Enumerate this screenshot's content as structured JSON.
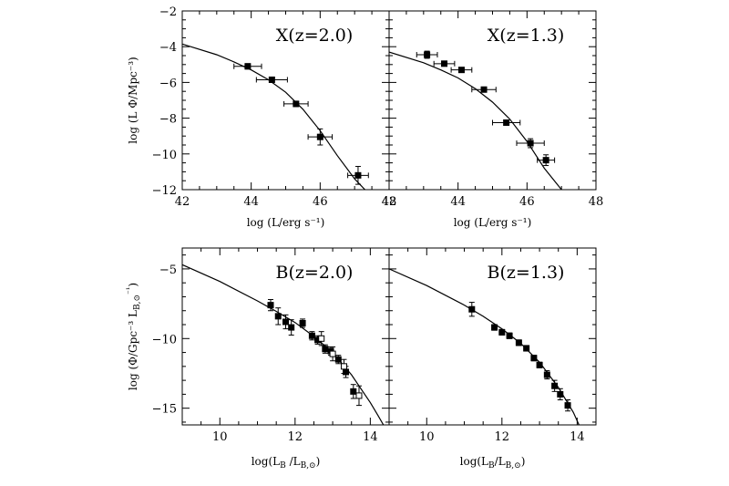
{
  "chart_data": [
    {
      "type": "scatter",
      "id": "xz20",
      "title": "X(z=2.0)",
      "xlabel": "log (L/erg s⁻¹)",
      "ylabel": "log (L Φ/Mpc⁻³)",
      "xlim": [
        42,
        48
      ],
      "ylim": [
        -12,
        -2
      ],
      "xticks": [
        "42",
        "44",
        "46",
        "48"
      ],
      "yticks": [
        "-12",
        "-10",
        "-8",
        "-6",
        "-4",
        "-2"
      ],
      "series": [
        {
          "marker": "filled-square",
          "points": [
            {
              "x": 43.9,
              "y": -5.1,
              "xerr": 0.4,
              "yerr": 0.15
            },
            {
              "x": 44.6,
              "y": -5.85,
              "xerr": 0.45,
              "yerr": 0.15
            },
            {
              "x": 45.3,
              "y": -7.2,
              "xerr": 0.35,
              "yerr": 0.15
            },
            {
              "x": 46.0,
              "y": -9.05,
              "xerr": 0.35,
              "yerr": 0.45
            },
            {
              "x": 47.1,
              "y": -11.2,
              "xerr": 0.3,
              "yerr": 0.5
            }
          ]
        }
      ],
      "model": [
        [
          42,
          -3.85
        ],
        [
          43,
          -4.45
        ],
        [
          43.5,
          -4.85
        ],
        [
          44,
          -5.3
        ],
        [
          44.5,
          -5.85
        ],
        [
          45,
          -6.55
        ],
        [
          45.5,
          -7.5
        ],
        [
          46,
          -8.7
        ],
        [
          46.5,
          -10.1
        ],
        [
          47,
          -11.4
        ],
        [
          47.3,
          -12.0
        ]
      ]
    },
    {
      "type": "scatter",
      "id": "xz13",
      "title": "X(z=1.3)",
      "xlabel": "log (L/erg s⁻¹)",
      "ylabel": "",
      "xlim": [
        42,
        48
      ],
      "ylim": [
        -12,
        -2
      ],
      "xticks": [
        "42",
        "44",
        "46",
        "48"
      ],
      "yticks": [],
      "series": [
        {
          "marker": "filled-square",
          "points": [
            {
              "x": 43.1,
              "y": -4.45,
              "xerr": 0.3,
              "yerr": 0.2
            },
            {
              "x": 43.6,
              "y": -4.95,
              "xerr": 0.3,
              "yerr": 0.12
            },
            {
              "x": 44.1,
              "y": -5.3,
              "xerr": 0.3,
              "yerr": 0.12
            },
            {
              "x": 44.75,
              "y": -6.4,
              "xerr": 0.35,
              "yerr": 0.12
            },
            {
              "x": 45.4,
              "y": -8.25,
              "xerr": 0.4,
              "yerr": 0.15
            },
            {
              "x": 46.1,
              "y": -9.4,
              "xerr": 0.4,
              "yerr": 0.25
            },
            {
              "x": 46.55,
              "y": -10.35,
              "xerr": 0.25,
              "yerr": 0.3
            }
          ]
        }
      ],
      "model": [
        [
          42,
          -4.3
        ],
        [
          43,
          -4.9
        ],
        [
          43.5,
          -5.3
        ],
        [
          44,
          -5.75
        ],
        [
          44.5,
          -6.35
        ],
        [
          45,
          -7.1
        ],
        [
          45.5,
          -8.05
        ],
        [
          46,
          -9.3
        ],
        [
          46.5,
          -10.8
        ],
        [
          47,
          -12.0
        ]
      ]
    },
    {
      "type": "scatter",
      "id": "bz20",
      "title": "B(z=2.0)",
      "xlabel": "log(L_B /L_B,⊙)",
      "ylabel": "log (Φ/Gpc⁻³ L_B,⊙⁻¹)",
      "xlim": [
        9,
        14.5
      ],
      "ylim": [
        -16.2,
        -3.5
      ],
      "xticks": [
        "10",
        "12",
        "14"
      ],
      "yticks": [
        "-5",
        "-10",
        "-15"
      ],
      "series": [
        {
          "marker": "filled-square",
          "points": [
            {
              "x": 11.35,
              "y": -7.6,
              "yerr": 0.4
            },
            {
              "x": 11.55,
              "y": -8.4,
              "yerr": 0.6
            },
            {
              "x": 11.75,
              "y": -8.8,
              "yerr": 0.5
            },
            {
              "x": 11.9,
              "y": -9.2,
              "yerr": 0.55
            },
            {
              "x": 12.2,
              "y": -8.9,
              "yerr": 0.3
            },
            {
              "x": 12.45,
              "y": -9.8,
              "yerr": 0.3
            },
            {
              "x": 12.6,
              "y": -10.1,
              "yerr": 0.3
            },
            {
              "x": 12.8,
              "y": -10.75,
              "yerr": 0.3
            },
            {
              "x": 12.95,
              "y": -10.9,
              "yerr": 0.3
            },
            {
              "x": 13.15,
              "y": -11.5,
              "yerr": 0.3
            },
            {
              "x": 13.35,
              "y": -12.4,
              "yerr": 0.4
            },
            {
              "x": 13.55,
              "y": -13.8,
              "yerr": 0.5
            }
          ]
        },
        {
          "marker": "open-square",
          "points": [
            {
              "x": 12.7,
              "y": -10.0,
              "yerr": 0.5
            },
            {
              "x": 13.0,
              "y": -11.1,
              "yerr": 0.5
            },
            {
              "x": 13.3,
              "y": -12.0,
              "yerr": 0.5
            },
            {
              "x": 13.7,
              "y": -14.1,
              "yerr": 0.7
            }
          ]
        }
      ],
      "model": [
        [
          9,
          -4.7
        ],
        [
          10,
          -5.9
        ],
        [
          11,
          -7.3
        ],
        [
          11.5,
          -8.05
        ],
        [
          12,
          -8.85
        ],
        [
          12.5,
          -9.85
        ],
        [
          13,
          -11.0
        ],
        [
          13.5,
          -12.6
        ],
        [
          14,
          -14.6
        ],
        [
          14.2,
          -15.5
        ],
        [
          14.35,
          -16.2
        ]
      ]
    },
    {
      "type": "scatter",
      "id": "bz13",
      "title": "B(z=1.3)",
      "xlabel": "log(L_B/L_B,⊙)",
      "ylabel": "",
      "xlim": [
        9,
        14.5
      ],
      "ylim": [
        -16.2,
        -3.5
      ],
      "xticks": [
        "10",
        "12",
        "14"
      ],
      "yticks": [],
      "series": [
        {
          "marker": "filled-square",
          "points": [
            {
              "x": 11.2,
              "y": -7.9,
              "yerr": 0.5
            },
            {
              "x": 11.8,
              "y": -9.2,
              "yerr": 0.2
            },
            {
              "x": 12.0,
              "y": -9.55,
              "yerr": 0.2
            },
            {
              "x": 12.2,
              "y": -9.8,
              "yerr": 0.2
            },
            {
              "x": 12.45,
              "y": -10.3,
              "yerr": 0.2
            },
            {
              "x": 12.65,
              "y": -10.7,
              "yerr": 0.2
            },
            {
              "x": 12.85,
              "y": -11.4,
              "yerr": 0.2
            },
            {
              "x": 13.0,
              "y": -11.9,
              "yerr": 0.2
            },
            {
              "x": 13.2,
              "y": -12.6,
              "yerr": 0.3
            },
            {
              "x": 13.4,
              "y": -13.4,
              "yerr": 0.4
            },
            {
              "x": 13.55,
              "y": -14.0,
              "yerr": 0.4
            },
            {
              "x": 13.75,
              "y": -14.8,
              "yerr": 0.4
            }
          ]
        }
      ],
      "model": [
        [
          9,
          -5.0
        ],
        [
          10,
          -6.2
        ],
        [
          11,
          -7.6
        ],
        [
          11.5,
          -8.4
        ],
        [
          12,
          -9.3
        ],
        [
          12.5,
          -10.35
        ],
        [
          13,
          -11.7
        ],
        [
          13.5,
          -13.5
        ],
        [
          13.9,
          -15.3
        ],
        [
          14.05,
          -16.2
        ]
      ]
    }
  ]
}
